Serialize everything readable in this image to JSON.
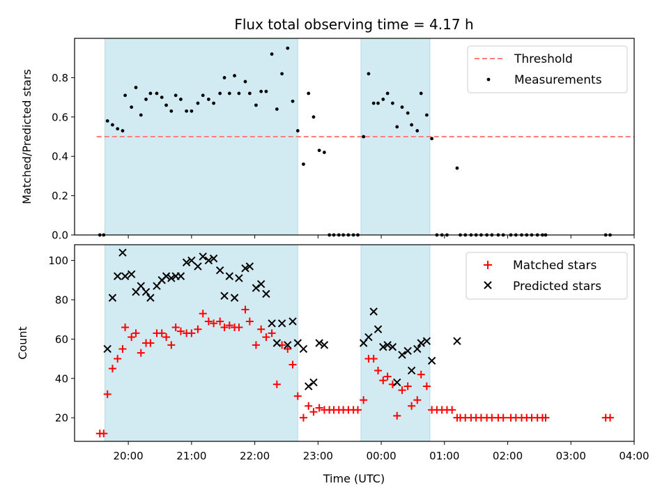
{
  "figure": {
    "title": "Flux total observing time = 4.17 h",
    "xlabel": "Time (UTC)",
    "x_ticks": [
      "20:00",
      "21:00",
      "22:00",
      "23:00",
      "00:00",
      "01:00",
      "02:00",
      "03:00",
      "04:00"
    ],
    "x_tick_hours": [
      20,
      21,
      22,
      23,
      24,
      25,
      26,
      27,
      28
    ],
    "xlim_hours": [
      19.15,
      28.0
    ],
    "shaded_intervals_hours": [
      [
        19.63,
        22.68
      ],
      [
        23.68,
        24.77
      ]
    ],
    "shade_color": "#add8e6"
  },
  "chart_data": [
    {
      "type": "scatter",
      "ylabel": "Matched/Predicted stars",
      "ylim": [
        0,
        1
      ],
      "y_ticks": [
        "0.0",
        "0.2",
        "0.4",
        "0.6",
        "0.8"
      ],
      "y_tick_values": [
        0.0,
        0.2,
        0.4,
        0.6,
        0.8
      ],
      "legend_position": "upper-right",
      "threshold": {
        "name": "Threshold",
        "value": 0.5,
        "x_range_hours": [
          19.5,
          28.0
        ],
        "color": "#ff7f7f"
      },
      "series": [
        {
          "name": "Measurements",
          "color": "#000000",
          "marker": "dot",
          "points": [
            [
              19.55,
              0.0
            ],
            [
              19.61,
              0.0
            ],
            [
              19.67,
              0.58
            ],
            [
              19.75,
              0.56
            ],
            [
              19.83,
              0.54
            ],
            [
              19.91,
              0.53
            ],
            [
              19.95,
              0.71
            ],
            [
              20.05,
              0.65
            ],
            [
              20.12,
              0.75
            ],
            [
              20.2,
              0.61
            ],
            [
              20.28,
              0.69
            ],
            [
              20.35,
              0.72
            ],
            [
              20.45,
              0.72
            ],
            [
              20.53,
              0.7
            ],
            [
              20.6,
              0.66
            ],
            [
              20.68,
              0.63
            ],
            [
              20.75,
              0.71
            ],
            [
              20.83,
              0.69
            ],
            [
              20.92,
              0.63
            ],
            [
              21.0,
              0.63
            ],
            [
              21.1,
              0.67
            ],
            [
              21.18,
              0.71
            ],
            [
              21.27,
              0.69
            ],
            [
              21.35,
              0.67
            ],
            [
              21.45,
              0.72
            ],
            [
              21.52,
              0.8
            ],
            [
              21.6,
              0.72
            ],
            [
              21.68,
              0.81
            ],
            [
              21.75,
              0.72
            ],
            [
              21.85,
              0.78
            ],
            [
              21.92,
              0.72
            ],
            [
              22.02,
              0.66
            ],
            [
              22.1,
              0.73
            ],
            [
              22.18,
              0.73
            ],
            [
              22.27,
              0.92
            ],
            [
              22.35,
              0.64
            ],
            [
              22.43,
              0.82
            ],
            [
              22.52,
              0.95
            ],
            [
              22.6,
              0.68
            ],
            [
              22.68,
              0.53
            ],
            [
              22.77,
              0.36
            ],
            [
              22.85,
              0.72
            ],
            [
              22.93,
              0.6
            ],
            [
              23.02,
              0.43
            ],
            [
              23.1,
              0.42
            ],
            [
              23.18,
              0.0
            ],
            [
              23.25,
              0.0
            ],
            [
              23.33,
              0.0
            ],
            [
              23.4,
              0.0
            ],
            [
              23.48,
              0.0
            ],
            [
              23.56,
              0.0
            ],
            [
              23.63,
              0.0
            ],
            [
              23.72,
              0.5
            ],
            [
              23.8,
              0.82
            ],
            [
              23.88,
              0.67
            ],
            [
              23.95,
              0.67
            ],
            [
              24.03,
              0.69
            ],
            [
              24.1,
              0.72
            ],
            [
              24.18,
              0.67
            ],
            [
              24.25,
              0.55
            ],
            [
              24.33,
              0.65
            ],
            [
              24.42,
              0.62
            ],
            [
              24.48,
              0.56
            ],
            [
              24.57,
              0.53
            ],
            [
              24.63,
              0.72
            ],
            [
              24.72,
              0.61
            ],
            [
              24.8,
              0.49
            ],
            [
              24.88,
              0.0
            ],
            [
              24.96,
              0.0
            ],
            [
              25.04,
              0.0
            ],
            [
              25.2,
              0.34
            ],
            [
              25.25,
              0.0
            ],
            [
              25.33,
              0.0
            ],
            [
              25.42,
              0.0
            ],
            [
              25.5,
              0.0
            ],
            [
              25.58,
              0.0
            ],
            [
              25.67,
              0.0
            ],
            [
              25.75,
              0.0
            ],
            [
              25.85,
              0.0
            ],
            [
              25.93,
              0.0
            ],
            [
              26.05,
              0.0
            ],
            [
              26.13,
              0.0
            ],
            [
              26.22,
              0.0
            ],
            [
              26.3,
              0.0
            ],
            [
              26.38,
              0.0
            ],
            [
              26.47,
              0.0
            ],
            [
              26.55,
              0.0
            ],
            [
              26.6,
              0.0
            ],
            [
              27.55,
              0.0
            ],
            [
              27.62,
              0.0
            ]
          ]
        }
      ]
    },
    {
      "type": "scatter",
      "ylabel": "Count",
      "ylim": [
        8,
        108
      ],
      "y_ticks": [
        "20",
        "40",
        "60",
        "80",
        "100"
      ],
      "y_tick_values": [
        20,
        40,
        60,
        80,
        100
      ],
      "legend_position": "upper-right",
      "series": [
        {
          "name": "Matched stars",
          "color": "#ff0000",
          "marker": "plus",
          "points": [
            [
              19.55,
              12
            ],
            [
              19.61,
              12
            ],
            [
              19.67,
              32
            ],
            [
              19.75,
              45
            ],
            [
              19.83,
              50
            ],
            [
              19.91,
              55
            ],
            [
              19.95,
              66
            ],
            [
              20.05,
              61
            ],
            [
              20.12,
              63
            ],
            [
              20.2,
              53
            ],
            [
              20.28,
              58
            ],
            [
              20.35,
              58
            ],
            [
              20.45,
              63
            ],
            [
              20.53,
              63
            ],
            [
              20.6,
              61
            ],
            [
              20.68,
              57
            ],
            [
              20.75,
              66
            ],
            [
              20.83,
              64
            ],
            [
              20.92,
              63
            ],
            [
              21.0,
              63
            ],
            [
              21.1,
              65
            ],
            [
              21.18,
              73
            ],
            [
              21.27,
              69
            ],
            [
              21.35,
              68
            ],
            [
              21.45,
              69
            ],
            [
              21.52,
              66
            ],
            [
              21.6,
              67
            ],
            [
              21.68,
              66
            ],
            [
              21.75,
              66
            ],
            [
              21.85,
              75
            ],
            [
              21.92,
              69
            ],
            [
              22.02,
              57
            ],
            [
              22.1,
              65
            ],
            [
              22.18,
              61
            ],
            [
              22.27,
              63
            ],
            [
              22.35,
              37
            ],
            [
              22.43,
              57
            ],
            [
              22.52,
              55
            ],
            [
              22.6,
              47
            ],
            [
              22.68,
              31
            ],
            [
              22.77,
              20
            ],
            [
              22.85,
              26
            ],
            [
              22.93,
              23
            ],
            [
              23.02,
              25
            ],
            [
              23.1,
              24
            ],
            [
              23.18,
              24
            ],
            [
              23.25,
              24
            ],
            [
              23.33,
              24
            ],
            [
              23.4,
              24
            ],
            [
              23.48,
              24
            ],
            [
              23.56,
              24
            ],
            [
              23.63,
              24
            ],
            [
              23.72,
              29
            ],
            [
              23.8,
              50
            ],
            [
              23.88,
              50
            ],
            [
              23.95,
              44
            ],
            [
              24.03,
              39
            ],
            [
              24.1,
              41
            ],
            [
              24.18,
              37
            ],
            [
              24.25,
              21
            ],
            [
              24.33,
              34
            ],
            [
              24.42,
              36
            ],
            [
              24.48,
              26
            ],
            [
              24.57,
              29
            ],
            [
              24.63,
              42
            ],
            [
              24.72,
              36
            ],
            [
              24.8,
              24
            ],
            [
              24.88,
              24
            ],
            [
              24.96,
              24
            ],
            [
              25.04,
              24
            ],
            [
              25.12,
              24
            ],
            [
              25.2,
              20
            ],
            [
              25.25,
              20
            ],
            [
              25.33,
              20
            ],
            [
              25.42,
              20
            ],
            [
              25.5,
              20
            ],
            [
              25.58,
              20
            ],
            [
              25.67,
              20
            ],
            [
              25.75,
              20
            ],
            [
              25.85,
              20
            ],
            [
              25.93,
              20
            ],
            [
              26.05,
              20
            ],
            [
              26.13,
              20
            ],
            [
              26.22,
              20
            ],
            [
              26.3,
              20
            ],
            [
              26.38,
              20
            ],
            [
              26.47,
              20
            ],
            [
              26.55,
              20
            ],
            [
              26.6,
              20
            ],
            [
              27.55,
              20
            ],
            [
              27.62,
              20
            ]
          ]
        },
        {
          "name": "Predicted stars",
          "color": "#000000",
          "marker": "x",
          "points": [
            [
              19.67,
              55
            ],
            [
              19.75,
              81
            ],
            [
              19.83,
              92
            ],
            [
              19.91,
              104
            ],
            [
              19.95,
              92
            ],
            [
              20.05,
              93
            ],
            [
              20.12,
              84
            ],
            [
              20.2,
              87
            ],
            [
              20.28,
              84
            ],
            [
              20.35,
              81
            ],
            [
              20.45,
              87
            ],
            [
              20.53,
              90
            ],
            [
              20.6,
              92
            ],
            [
              20.68,
              91
            ],
            [
              20.75,
              92
            ],
            [
              20.83,
              92
            ],
            [
              20.92,
              99
            ],
            [
              21.0,
              100
            ],
            [
              21.1,
              97
            ],
            [
              21.18,
              102
            ],
            [
              21.27,
              100
            ],
            [
              21.35,
              101
            ],
            [
              21.45,
              95
            ],
            [
              21.52,
              82
            ],
            [
              21.6,
              92
            ],
            [
              21.68,
              81
            ],
            [
              21.75,
              91
            ],
            [
              21.85,
              96
            ],
            [
              21.92,
              97
            ],
            [
              22.02,
              86
            ],
            [
              22.1,
              88
            ],
            [
              22.18,
              83
            ],
            [
              22.27,
              68
            ],
            [
              22.35,
              58
            ],
            [
              22.43,
              68
            ],
            [
              22.52,
              57
            ],
            [
              22.6,
              69
            ],
            [
              22.68,
              58
            ],
            [
              22.77,
              55
            ],
            [
              22.85,
              36
            ],
            [
              22.93,
              38
            ],
            [
              23.02,
              58
            ],
            [
              23.1,
              57
            ],
            [
              23.72,
              58
            ],
            [
              23.8,
              61
            ],
            [
              23.88,
              74
            ],
            [
              23.95,
              65
            ],
            [
              24.03,
              56
            ],
            [
              24.1,
              57
            ],
            [
              24.18,
              56
            ],
            [
              24.25,
              38
            ],
            [
              24.33,
              52
            ],
            [
              24.42,
              54
            ],
            [
              24.48,
              44
            ],
            [
              24.57,
              55
            ],
            [
              24.63,
              58
            ],
            [
              24.72,
              59
            ],
            [
              24.8,
              49
            ],
            [
              25.2,
              59
            ]
          ]
        }
      ]
    }
  ]
}
